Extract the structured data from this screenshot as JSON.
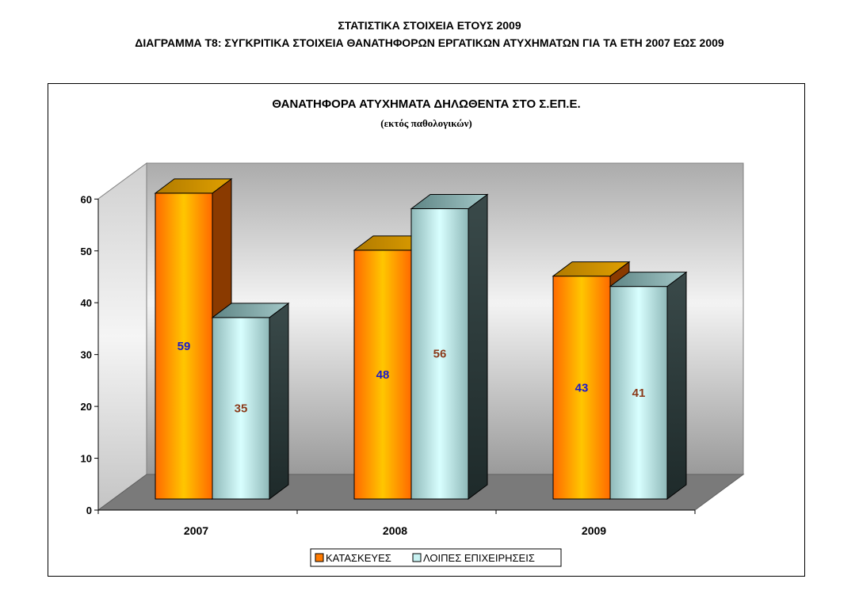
{
  "page": {
    "title_line1": "ΣΤΑΤΙΣΤΙΚΑ ΣΤΟΙΧΕΙΑ ΕΤΟΥΣ 2009",
    "title_line2": "ΔΙΑΓΡΑΜΜΑ Τ8: ΣΥΓΚΡΙΤΙΚΑ ΣΤΟΙΧΕΙΑ ΘΑΝΑΤΗΦΟΡΩΝ ΕΡΓΑΤΙΚΩΝ ΑΤΥΧΗΜΑΤΩΝ ΓΙΑ ΤΑ ΕΤΗ 2007 ΕΩΣ 2009"
  },
  "chart_data": {
    "type": "bar",
    "style": "3d-clustered-column",
    "title": "ΘΑΝΑΤΗΦΟΡΑ ΑΤΥΧΗΜΑΤΑ ΔΗΛΩΘΕΝΤΑ ΣΤΟ Σ.ΕΠ.Ε.",
    "subtitle": "(εκτός παθολογικών)",
    "xlabel": "",
    "ylabel": "",
    "categories": [
      "2007",
      "2008",
      "2009"
    ],
    "ylim": [
      0,
      60
    ],
    "yticks": [
      "0",
      "10",
      "20",
      "30",
      "40",
      "50",
      "60"
    ],
    "grid": false,
    "legend_position": "bottom",
    "series": [
      {
        "name": "ΚΑΤΑΣΚΕΥΕΣ",
        "values": [
          59,
          48,
          43
        ],
        "color": "#ff7a00",
        "label_color": "#1a1acc"
      },
      {
        "name": "ΛΟΙΠΕΣ ΕΠΙΧΕΙΡΗΣΕΙΣ",
        "values": [
          35,
          56,
          41
        ],
        "color": "#c8f2f2",
        "label_color": "#8b3a1a"
      }
    ]
  }
}
